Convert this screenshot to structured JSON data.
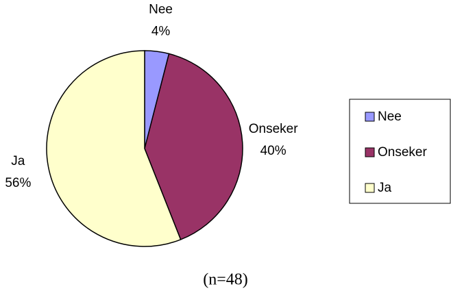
{
  "chart_data": {
    "type": "pie",
    "categories": [
      "Nee",
      "Onseker",
      "Ja"
    ],
    "values": [
      4,
      40,
      56
    ],
    "value_labels": [
      "4%",
      "40%",
      "56%"
    ],
    "colors": [
      "#9999ff",
      "#993366",
      "#ffffcc"
    ],
    "legend": "right",
    "caption": "(n=48)"
  }
}
